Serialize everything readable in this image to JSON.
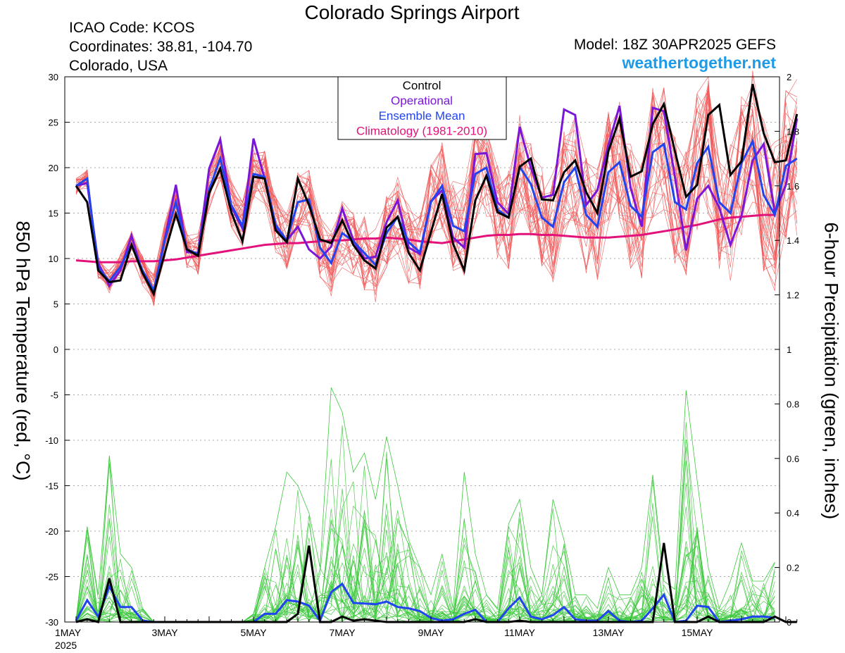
{
  "header": {
    "title": "Colorado Springs Airport",
    "icao": "ICAO Code: KCOS",
    "coordinates": "Coordinates: 38.81, -104.70",
    "region": "Colorado, USA",
    "model": "Model: 18Z 30APR2025 GEFS",
    "site": "weathertogether.net"
  },
  "colors": {
    "members": "#f05a5a",
    "precip_members": "#3ec83e",
    "control": "#000000",
    "operational": "#7b16d8",
    "ensemble_mean": "#2244ee",
    "climatology": "#e3127a",
    "site": "#1e9be8"
  },
  "chart_data": {
    "type": "line",
    "title": "Colorado Springs Airport",
    "ylabel": "850 hPa Temperature (red, °C)",
    "y2label": "6-hour Precipitation (green, inches)",
    "ylim": [
      -30,
      30
    ],
    "y2lim": [
      0,
      2
    ],
    "yticks": [
      30,
      25,
      20,
      15,
      10,
      5,
      0,
      -5,
      -10,
      -15,
      -20,
      -25,
      -30
    ],
    "y2ticks": [
      "2",
      "1.8",
      "1.6",
      "1.4",
      "1.2",
      "1",
      "0.8",
      "0.6",
      "0.4",
      "0.2",
      "0"
    ],
    "x_step_hours": 6,
    "x_start": "2025-05-01 00Z",
    "xticks": [
      {
        "label": "1MAY",
        "sub": "2025",
        "step": 0
      },
      {
        "label": "3MAY",
        "sub": "",
        "step": 8
      },
      {
        "label": "5MAY",
        "sub": "",
        "step": 16
      },
      {
        "label": "7MAY",
        "sub": "",
        "step": 24
      },
      {
        "label": "9MAY",
        "sub": "",
        "step": 32
      },
      {
        "label": "11MAY",
        "sub": "",
        "step": 40
      },
      {
        "label": "13MAY",
        "sub": "",
        "step": 48
      },
      {
        "label": "15MAY",
        "sub": "",
        "step": 56
      }
    ],
    "grid": true,
    "legend": {
      "placement": "top-center",
      "items": [
        {
          "label": "Control",
          "color": "#000000"
        },
        {
          "label": "Operational",
          "color": "#7b16d8"
        },
        {
          "label": "Ensemble Mean",
          "color": "#2244ee"
        },
        {
          "label": "Climatology (1981-2010)",
          "color": "#e3127a"
        }
      ]
    },
    "temperature": {
      "control": [
        18.0,
        16.2,
        8.7,
        7.4,
        7.6,
        11.5,
        8.4,
        6.1,
        10.6,
        14.9,
        11.0,
        10.3,
        17.2,
        19.9,
        15.1,
        11.9,
        19.0,
        18.8,
        13.1,
        11.8,
        18.8,
        15.9,
        12.1,
        11.7,
        14.2,
        11.5,
        9.8,
        8.9,
        13.4,
        14.6,
        10.6,
        8.7,
        12.9,
        17.1,
        11.6,
        8.7,
        16.4,
        19.1,
        15.1,
        14.5,
        20.1,
        21.0,
        16.5,
        16.4,
        19.5,
        20.8,
        17.3,
        15.0,
        21.8,
        25.4,
        19.0,
        19.6,
        24.8,
        27.0,
        21.8,
        16.8,
        18.1,
        25.8,
        26.9,
        19.2,
        20.7,
        29.2,
        23.8,
        20.6,
        20.8,
        25.9
      ],
      "operational": [
        18.0,
        18.3,
        9.5,
        7.0,
        8.7,
        12.5,
        8.4,
        6.3,
        12.1,
        18.1,
        10.7,
        10.6,
        19.9,
        23.1,
        15.7,
        13.3,
        23.2,
        18.8,
        13.3,
        12.0,
        13.5,
        11.0,
        10.0,
        11.3,
        15.5,
        12.0,
        10.0,
        10.2,
        14.0,
        16.4,
        11.2,
        10.5,
        16.3,
        17.5,
        12.3,
        11.2,
        21.5,
        21.6,
        16.2,
        14.9,
        24.5,
        20.0,
        16.7,
        17.0,
        26.4,
        25.8,
        15.9,
        17.5,
        22.5,
        26.8,
        17.8,
        13.5,
        26.6,
        26.2,
        19.0,
        10.9,
        16.6,
        18.0,
        15.6,
        11.5,
        14.7,
        20.8,
        22.6,
        15.0,
        18.1,
        25.4
      ],
      "ensemble_mean": [
        18.0,
        18.8,
        9.0,
        7.5,
        9.1,
        11.5,
        8.7,
        6.5,
        12.0,
        16.2,
        11.0,
        10.5,
        17.6,
        21.0,
        15.9,
        13.6,
        19.3,
        19.0,
        13.7,
        12.0,
        16.2,
        16.5,
        11.2,
        9.5,
        12.8,
        11.9,
        10.6,
        9.3,
        12.8,
        14.6,
        11.8,
        10.7,
        16.2,
        18.0,
        13.6,
        13.0,
        19.3,
        20.0,
        15.4,
        14.5,
        20.1,
        18.2,
        14.5,
        13.5,
        18.4,
        20.0,
        14.8,
        13.5,
        19.5,
        20.6,
        15.8,
        14.6,
        21.7,
        22.6,
        16.2,
        15.4,
        20.5,
        22.3,
        16.2,
        15.0,
        20.5,
        22.9,
        17.0,
        14.8,
        20.2,
        21.0
      ],
      "climatology": [
        9.8,
        9.7,
        9.6,
        9.6,
        9.6,
        9.7,
        9.7,
        9.7,
        9.8,
        9.9,
        10.1,
        10.3,
        10.5,
        10.7,
        10.9,
        11.1,
        11.3,
        11.5,
        11.6,
        11.7,
        11.7,
        11.8,
        11.9,
        12.0,
        12.0,
        12.1,
        12.2,
        12.2,
        12.3,
        12.2,
        12.1,
        11.9,
        11.8,
        11.7,
        11.9,
        12.1,
        12.3,
        12.5,
        12.6,
        12.6,
        12.7,
        12.7,
        12.6,
        12.6,
        12.5,
        12.4,
        12.3,
        12.3,
        12.3,
        12.4,
        12.5,
        12.6,
        12.8,
        13.0,
        13.2,
        13.5,
        13.7,
        14.0,
        14.3,
        14.5,
        14.6,
        14.7,
        14.8,
        14.8
      ]
    },
    "precipitation": {
      "control": [
        0,
        0.01,
        0,
        0.16,
        0,
        0,
        0,
        0,
        0,
        0,
        0,
        0,
        0,
        0,
        0,
        0,
        0,
        0,
        0,
        0,
        0.03,
        0.28,
        0,
        0,
        0.02,
        0.005,
        0.01,
        0.005,
        0,
        0,
        0,
        0,
        0,
        0,
        0,
        0,
        0.01,
        0,
        0,
        0,
        0.005,
        0,
        0,
        0,
        0,
        0,
        0,
        0,
        0,
        0,
        0,
        0,
        0,
        0.29,
        0,
        0,
        0,
        0.02,
        0,
        0,
        0,
        0,
        0,
        0.02,
        0,
        0
      ],
      "ensemble_mean": [
        0.005,
        0.08,
        0.02,
        0.13,
        0.055,
        0.055,
        0.005,
        0,
        0,
        0,
        0,
        0,
        0,
        0,
        0,
        0,
        0,
        0.03,
        0.03,
        0.08,
        0.075,
        0.06,
        0.005,
        0.11,
        0.14,
        0.07,
        0.068,
        0.065,
        0.075,
        0.055,
        0.05,
        0.04,
        0.015,
        0.005,
        0.01,
        0.03,
        0.045,
        0,
        0,
        0.05,
        0.09,
        0.02,
        0.01,
        0.025,
        0.055,
        0.01,
        0.005,
        0.005,
        0.04,
        0.005,
        0,
        0.005,
        0.05,
        0.1,
        0,
        0.005,
        0.06,
        0.055,
        0,
        0.005,
        0.01,
        0.02,
        0.02,
        0.015
      ],
      "members_max": [
        0.01,
        0.35,
        0.1,
        0.61,
        0.25,
        0.2,
        0.05,
        0,
        0,
        0,
        0,
        0,
        0,
        0,
        0,
        0,
        0.03,
        0.2,
        0.35,
        0.55,
        0.5,
        0.4,
        0.2,
        0.86,
        0.77,
        0.55,
        0.62,
        0.45,
        0.68,
        0.5,
        0.3,
        0.2,
        0.1,
        0.25,
        0.05,
        0.55,
        0.25,
        0.1,
        0.05,
        0.36,
        0.45,
        0.2,
        0.1,
        0.45,
        0.3,
        0.1,
        0.1,
        0.05,
        0.2,
        0.1,
        0.1,
        0.2,
        0.54,
        0.15,
        0.12,
        0.85,
        0.52,
        0.2,
        0.05,
        0.15,
        0.29,
        0.15,
        0.15,
        0.22
      ]
    }
  }
}
